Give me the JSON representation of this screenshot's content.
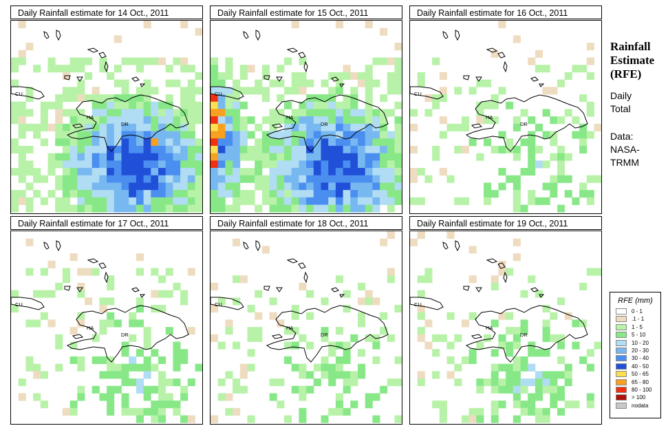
{
  "panels": [
    {
      "title": "Daily Rainfall estimate for  14 Oct., 2011",
      "intensity": 1.0,
      "west": 1.0
    },
    {
      "title": "Daily Rainfall estimate for  15 Oct., 2011",
      "intensity": 1.0,
      "west": 2.0
    },
    {
      "title": "Daily Rainfall estimate for  16 Oct., 2011",
      "intensity": 0.2,
      "west": 0.3
    },
    {
      "title": "Daily Rainfall estimate for  17 Oct., 2011",
      "intensity": 0.25,
      "west": 0.2
    },
    {
      "title": "Daily Rainfall estimate for  18 Oct., 2011",
      "intensity": 0.2,
      "west": 0.2
    },
    {
      "title": "Daily Rainfall estimate for  19 Oct., 2011",
      "intensity": 0.25,
      "west": 0.2
    }
  ],
  "country_labels": {
    "cu": "CU",
    "ha": "HA",
    "dr": "DR"
  },
  "side": {
    "title_line1": "Rainfall",
    "title_line2": "Estimate",
    "title_line3": "(RFE)",
    "daily_line1": "Daily",
    "daily_line2": "Total",
    "source_line1": "Data:",
    "source_line2": "NASA-",
    "source_line3": "TRMM"
  },
  "legend": {
    "title": "RFE (mm)",
    "items": [
      {
        "label": "0 - 1",
        "color": "#ffffff"
      },
      {
        "label": ".1 - 1",
        "color": "#eedcc0"
      },
      {
        "label": "1 - 5",
        "color": "#b8f2a8"
      },
      {
        "label": "5 - 10",
        "color": "#88e888"
      },
      {
        "label": "10 - 20",
        "color": "#b0dcf4"
      },
      {
        "label": "20 - 30",
        "color": "#78b8f0"
      },
      {
        "label": "30 - 40",
        "color": "#4a8ef0"
      },
      {
        "label": "40 - 50",
        "color": "#2050d8"
      },
      {
        "label": "50 - 65",
        "color": "#fce050"
      },
      {
        "label": "65 - 80",
        "color": "#f8a020"
      },
      {
        "label": "80 - 100",
        "color": "#f03010"
      },
      {
        "label": "> 100",
        "color": "#b01008"
      },
      {
        "label": "nodata",
        "color": "#c8c8c8"
      }
    ]
  }
}
